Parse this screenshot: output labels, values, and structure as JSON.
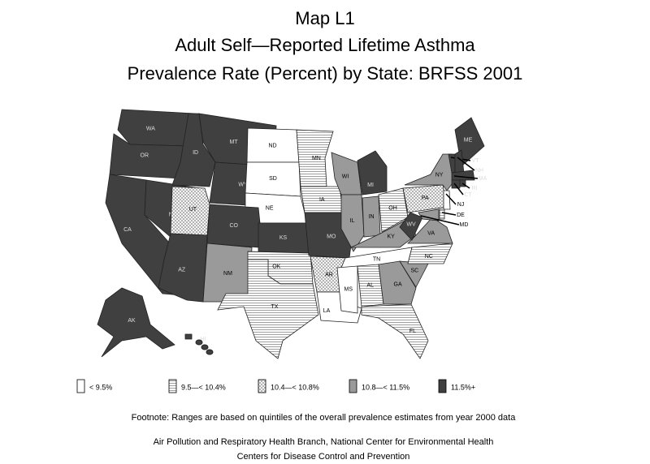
{
  "title": [
    "Map L1",
    "Adult Self—Reported Lifetime Asthma",
    "Prevalence Rate (Percent) by State: BRFSS 2001"
  ],
  "legend": [
    {
      "label": "< 9.5%",
      "pattern": "white"
    },
    {
      "label": "9.5—< 10.4%",
      "pattern": "hlines"
    },
    {
      "label": "10.4—< 10.8%",
      "pattern": "crosshatch"
    },
    {
      "label": "10.8—< 11.5%",
      "pattern": "gray"
    },
    {
      "label": "11.5%+",
      "pattern": "dark"
    }
  ],
  "states": [
    {
      "label": "WA",
      "class": 4
    },
    {
      "label": "OR",
      "class": 4
    },
    {
      "label": "CA",
      "class": 4
    },
    {
      "label": "NV",
      "class": 4
    },
    {
      "label": "ID",
      "class": 4
    },
    {
      "label": "MT",
      "class": 4
    },
    {
      "label": "WY",
      "class": 4
    },
    {
      "label": "UT",
      "class": 2
    },
    {
      "label": "CO",
      "class": 4
    },
    {
      "label": "AZ",
      "class": 4
    },
    {
      "label": "NM",
      "class": 3
    },
    {
      "label": "ND",
      "class": 0
    },
    {
      "label": "SD",
      "class": 0
    },
    {
      "label": "NE",
      "class": 0
    },
    {
      "label": "KS",
      "class": 4
    },
    {
      "label": "OK",
      "class": 1
    },
    {
      "label": "TX",
      "class": 1
    },
    {
      "label": "MN",
      "class": 1
    },
    {
      "label": "IA",
      "class": 1
    },
    {
      "label": "MO",
      "class": 4
    },
    {
      "label": "AR",
      "class": 2
    },
    {
      "label": "LA",
      "class": 0
    },
    {
      "label": "WI",
      "class": 3
    },
    {
      "label": "MI",
      "class": 4
    },
    {
      "label": "IL",
      "class": 3
    },
    {
      "label": "IN",
      "class": 3
    },
    {
      "label": "OH",
      "class": 1
    },
    {
      "label": "KY",
      "class": 3
    },
    {
      "label": "TN",
      "class": 0
    },
    {
      "label": "MS",
      "class": 0
    },
    {
      "label": "AL",
      "class": 1
    },
    {
      "label": "GA",
      "class": 3
    },
    {
      "label": "FL",
      "class": 1
    },
    {
      "label": "SC",
      "class": 3
    },
    {
      "label": "NC",
      "class": 1
    },
    {
      "label": "VA",
      "class": 3
    },
    {
      "label": "WV",
      "class": 4
    },
    {
      "label": "PA",
      "class": 2
    },
    {
      "label": "NY",
      "class": 3
    },
    {
      "label": "ME",
      "class": 4
    },
    {
      "label": "VT",
      "class": 4
    },
    {
      "label": "NH",
      "class": 4
    },
    {
      "label": "MA",
      "class": 4
    },
    {
      "label": "RI",
      "class": 4
    },
    {
      "label": "CT",
      "class": 4
    },
    {
      "label": "NJ",
      "class": 0
    },
    {
      "label": "DE",
      "class": 1
    },
    {
      "label": "MD",
      "class": 3
    },
    {
      "label": "AK",
      "class": 4
    },
    {
      "label": "HI",
      "class": 4
    }
  ],
  "footnote": "Footnote: Ranges are based on quintiles of the overall prevalence estimates from year 2000 data",
  "credits": [
    "Air Pollution and Respiratory Health Branch, National Center for Environmental Health",
    "Centers for Disease Control and Prevention"
  ]
}
